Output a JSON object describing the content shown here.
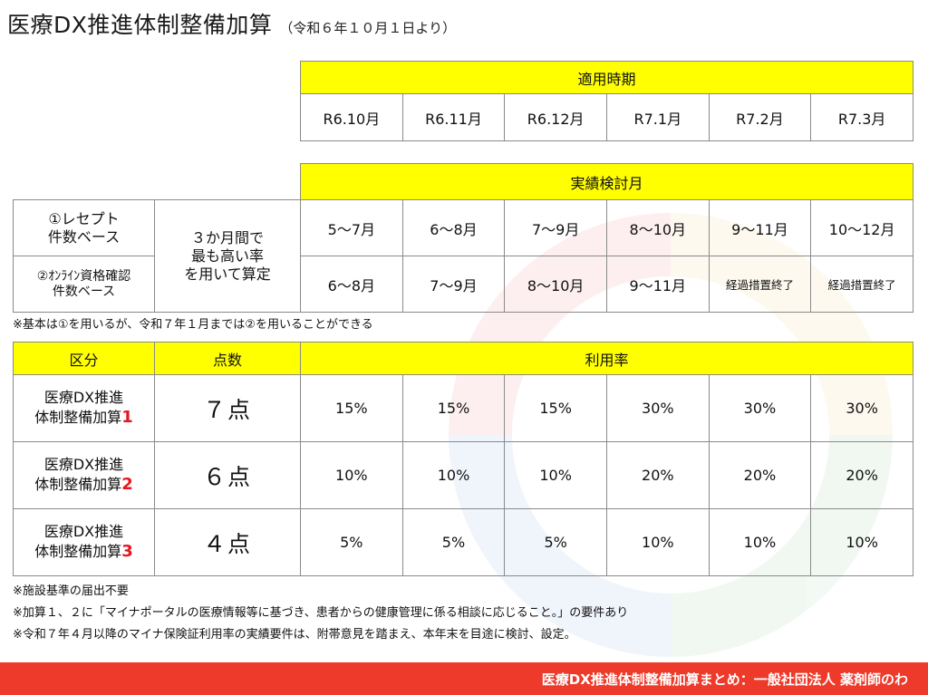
{
  "title": {
    "main": "医療DX推進体制整備加算",
    "sub": "（令和６年１０月１日より）"
  },
  "period_table": {
    "header": "適用時期",
    "months": [
      "R6.10月",
      "R6.11月",
      "R6.12月",
      "R7.1月",
      "R7.2月",
      "R7.3月"
    ]
  },
  "review_table": {
    "header": "実績検討月",
    "basis_label": "３か月間で\n最も高い率\nを用いて算定",
    "rows": [
      {
        "label": "①レセプト\n件数ベース",
        "values": [
          "5～7月",
          "6～8月",
          "7～9月",
          "8～10月",
          "9～11月",
          "10～12月"
        ]
      },
      {
        "label": "②ｵﾝﾗｲﾝ資格確認\n件数ベース",
        "values": [
          "6～8月",
          "7～9月",
          "8～10月",
          "9～11月",
          "経過措置終了",
          "経過措置終了"
        ]
      }
    ]
  },
  "notes": {
    "note1": "※基本は①を用いるが、令和７年１月までは②を用いることができる",
    "note2": "※施設基準の届出不要",
    "note3": "※加算１、２に「マイナポータルの医療情報等に基づき、患者からの健康管理に係る相談に応じること。」の要件あり",
    "note4": "※令和７年４月以降のマイナ保険証利用率の実績要件は、附帯意見を踏まえ、本年末を目途に検討、設定。"
  },
  "points_table": {
    "headers": {
      "category": "区分",
      "points": "点数",
      "rate": "利用率"
    },
    "rows": [
      {
        "name": "医療DX推進\n体制整備加算",
        "num": "1",
        "points": "７点",
        "rates": [
          "15%",
          "15%",
          "15%",
          "30%",
          "30%",
          "30%"
        ]
      },
      {
        "name": "医療DX推進\n体制整備加算",
        "num": "2",
        "points": "６点",
        "rates": [
          "10%",
          "10%",
          "10%",
          "20%",
          "20%",
          "20%"
        ]
      },
      {
        "name": "医療DX推進\n体制整備加算",
        "num": "3",
        "points": "４点",
        "rates": [
          "5%",
          "5%",
          "5%",
          "10%",
          "10%",
          "10%"
        ]
      }
    ]
  },
  "footer": "医療DX推進体制整備加算まとめ：一般社団法人 薬剤師のわ",
  "colors": {
    "header_bg": "#ffff00",
    "accent_red": "#e8141e",
    "footer_bg": "#ee3a2a"
  }
}
